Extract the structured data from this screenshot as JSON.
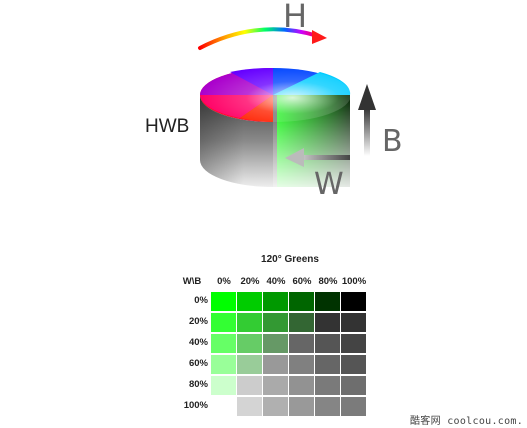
{
  "diagram": {
    "hue_label": "H",
    "black_label": "B",
    "white_label": "W",
    "model_label": "HWB"
  },
  "table": {
    "title": "120° Greens",
    "corner": "W\\B",
    "black_levels": [
      "0%",
      "20%",
      "40%",
      "60%",
      "80%",
      "100%"
    ],
    "white_levels": [
      "0%",
      "20%",
      "40%",
      "60%",
      "80%",
      "100%"
    ],
    "rows": [
      [
        "#00ff00",
        "#00cc00",
        "#009900",
        "#006600",
        "#003300",
        "#000000"
      ],
      [
        "#33ff33",
        "#33cc33",
        "#339933",
        "#336633",
        "#333333",
        "#333333"
      ],
      [
        "#66ff66",
        "#66cc66",
        "#669966",
        "#666666",
        "#555555",
        "#444444"
      ],
      [
        "#99ff99",
        "#99cc99",
        "#999999",
        "#808080",
        "#666666",
        "#555555"
      ],
      [
        "#ccffcc",
        "#cccccc",
        "#aaaaaa",
        "#929292",
        "#7a7a7a",
        "#6e6e6e"
      ],
      [
        null,
        "#d4d4d4",
        "#b0b0b0",
        "#999999",
        "#858585",
        "#7b7b7b"
      ]
    ]
  },
  "watermark": "酷客网 coolcou.com."
}
